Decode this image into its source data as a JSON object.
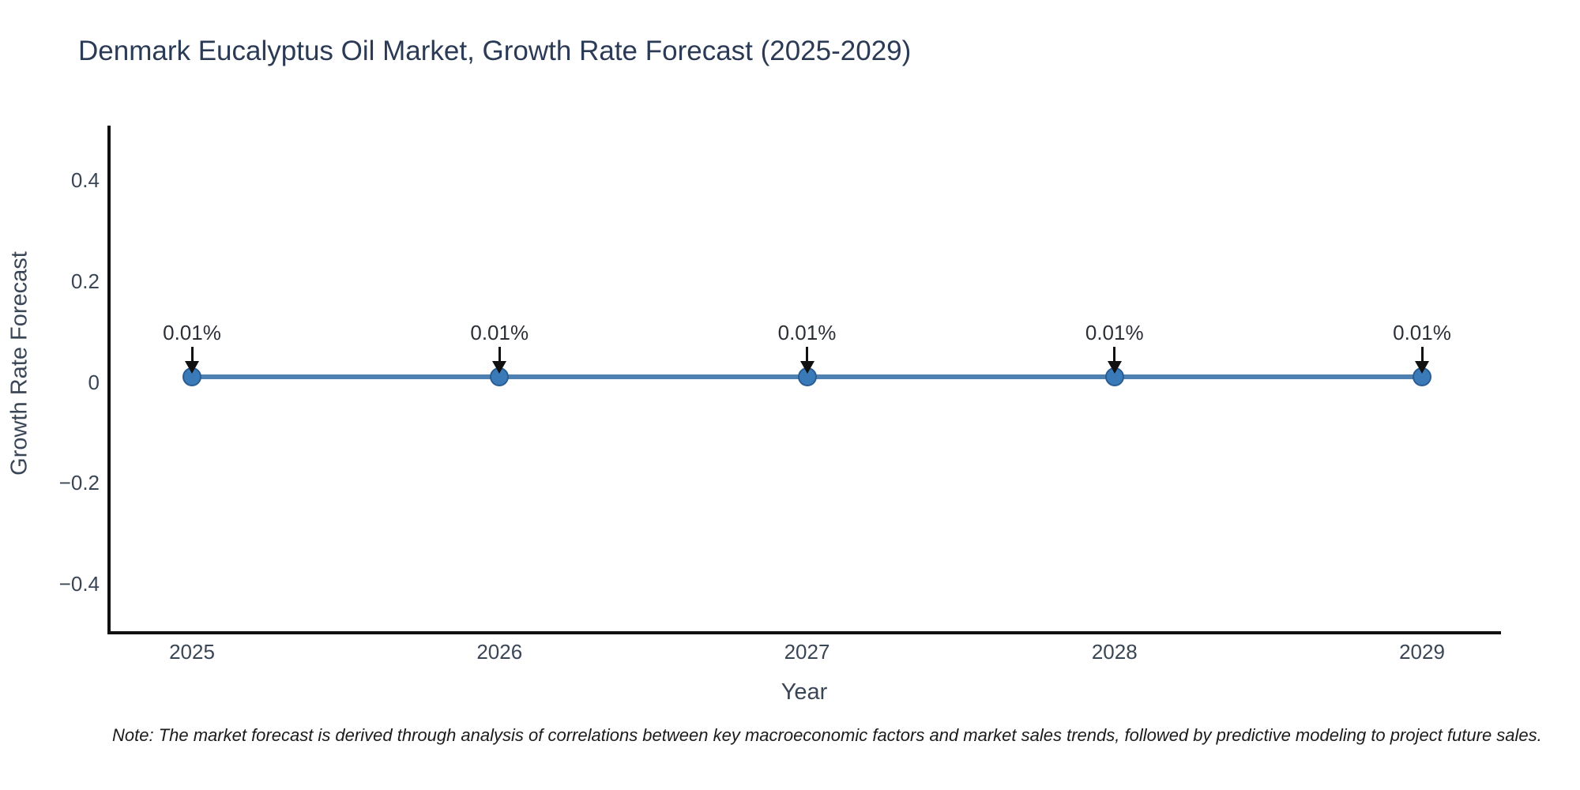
{
  "header": {
    "title": "Denmark Eucalyptus Oil Market, Growth Rate Forecast (2025-2029)"
  },
  "note": {
    "text": "Note: The market forecast is derived through analysis of correlations between key macroeconomic factors and market sales trends, followed by predictive modeling to project future sales."
  },
  "chart_data": {
    "type": "line",
    "title": "Denmark Eucalyptus Oil Market, Growth Rate Forecast (2025-2029)",
    "xlabel": "Year",
    "ylabel": "Growth Rate Forecast",
    "x": [
      2025,
      2026,
      2027,
      2028,
      2029
    ],
    "x_tick_labels": [
      "2025",
      "2026",
      "2027",
      "2028",
      "2029"
    ],
    "values": [
      0.01,
      0.01,
      0.01,
      0.01,
      0.01
    ],
    "point_labels": [
      "0.01%",
      "0.01%",
      "0.01%",
      "0.01%",
      "0.01%"
    ],
    "unit": "%",
    "y_ticks": [
      0.4,
      0.2,
      0,
      -0.2,
      -0.4
    ],
    "y_tick_labels": [
      "0.4",
      "0.2",
      "0",
      "−0.2",
      "−0.4"
    ],
    "ylim": [
      -0.497,
      0.507
    ],
    "grid": false,
    "legend": "none",
    "colors": {
      "line": "#4e80b2",
      "marker_fill": "#3b7ab8",
      "marker_edge": "#2a5d92",
      "arrow": "#111111",
      "title_text": "#2b3a55",
      "axis_text": "#3a4656",
      "axis_line": "#111111",
      "annotation_text": "#2b2f36",
      "note_text": "#1b1b1b",
      "background": "#ffffff"
    }
  }
}
